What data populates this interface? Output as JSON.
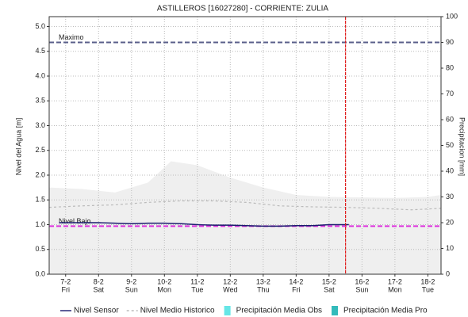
{
  "chart_data": {
    "type": "line",
    "title": "ASTILLEROS [16027280] - CORRIENTE: ZULIA",
    "ylabel": "Nivel del Agua [m]",
    "y2label": "Precipitacion [mm]",
    "xlim": [
      6.5,
      18.4
    ],
    "ylim": [
      0,
      5.2
    ],
    "y2lim": [
      0,
      100
    ],
    "grid": true,
    "xticks": [
      {
        "value": 7,
        "label": "7-2",
        "weekday": "Fri"
      },
      {
        "value": 8,
        "label": "8-2",
        "weekday": "Sat"
      },
      {
        "value": 9,
        "label": "9-2",
        "weekday": "Sun"
      },
      {
        "value": 10,
        "label": "10-2",
        "weekday": "Mon"
      },
      {
        "value": 11,
        "label": "11-2",
        "weekday": "Tue"
      },
      {
        "value": 12,
        "label": "12-2",
        "weekday": "Wed"
      },
      {
        "value": 13,
        "label": "13-2",
        "weekday": "Thu"
      },
      {
        "value": 14,
        "label": "14-2",
        "weekday": "Fri"
      },
      {
        "value": 15,
        "label": "15-2",
        "weekday": "Sat"
      },
      {
        "value": 16,
        "label": "16-2",
        "weekday": "Sun"
      },
      {
        "value": 17,
        "label": "17-2",
        "weekday": "Mon"
      },
      {
        "value": 18,
        "label": "18-2",
        "weekday": "Tue"
      }
    ],
    "yticks": [
      {
        "value": 0,
        "label": "0.0"
      },
      {
        "value": 0.5,
        "label": "0.5"
      },
      {
        "value": 1,
        "label": "1.0"
      },
      {
        "value": 1.5,
        "label": "1.5"
      },
      {
        "value": 2,
        "label": "2.0"
      },
      {
        "value": 2.5,
        "label": "2.5"
      },
      {
        "value": 3,
        "label": "3.0"
      },
      {
        "value": 3.5,
        "label": "3.5"
      },
      {
        "value": 4,
        "label": "4.0"
      },
      {
        "value": 4.5,
        "label": "4.5"
      },
      {
        "value": 5,
        "label": "5.0"
      }
    ],
    "y2ticks": [
      0,
      10,
      20,
      30,
      40,
      50,
      60,
      70,
      80,
      90,
      100
    ],
    "band": {
      "color": "#efefef",
      "x": [
        6.5,
        7.5,
        8.5,
        9.5,
        10.2,
        11,
        12,
        13,
        14,
        15,
        16,
        17,
        18,
        18.4
      ],
      "values": [
        1.75,
        1.72,
        1.65,
        1.85,
        2.28,
        2.2,
        1.95,
        1.75,
        1.6,
        1.56,
        1.55,
        1.54,
        1.56,
        1.6
      ]
    },
    "series": [
      {
        "name": "Nivel Sensor",
        "color": "#1a1a6e",
        "dash": false,
        "x": [
          6.8,
          7.5,
          8,
          8.5,
          9,
          9.5,
          10,
          10.5,
          11,
          11.5,
          12,
          12.5,
          13,
          13.5,
          14,
          14.5,
          15,
          15.6
        ],
        "values": [
          1.04,
          1.04,
          1.04,
          1.03,
          1.02,
          1.03,
          1.03,
          1.02,
          1.0,
          0.99,
          0.99,
          0.98,
          0.97,
          0.97,
          0.98,
          0.98,
          1.0,
          1.0
        ]
      },
      {
        "name": "Nivel Medio Historico",
        "color": "#bbbbbb",
        "dash": true,
        "x": [
          6.5,
          7.5,
          8.5,
          9.5,
          10.5,
          11.5,
          12.5,
          13.5,
          14.5,
          15.5,
          16.5,
          17.5,
          18.4
        ],
        "values": [
          1.35,
          1.38,
          1.4,
          1.45,
          1.48,
          1.48,
          1.45,
          1.38,
          1.36,
          1.35,
          1.33,
          1.3,
          1.33
        ]
      },
      {
        "name": "Precipitación Media Obs",
        "color": "#66e6e6",
        "axis": "y2"
      },
      {
        "name": "Precipitación Media Pro",
        "color": "#33bbbb",
        "axis": "y2"
      }
    ],
    "hlines": [
      {
        "label": "Maximo",
        "value": 4.68,
        "color": "#5a5f8a"
      },
      {
        "label": "Nivel Bajo",
        "value": 0.97,
        "color": "#dd33dd"
      }
    ],
    "vline": {
      "value": 15.5,
      "color": "#e02020"
    }
  }
}
